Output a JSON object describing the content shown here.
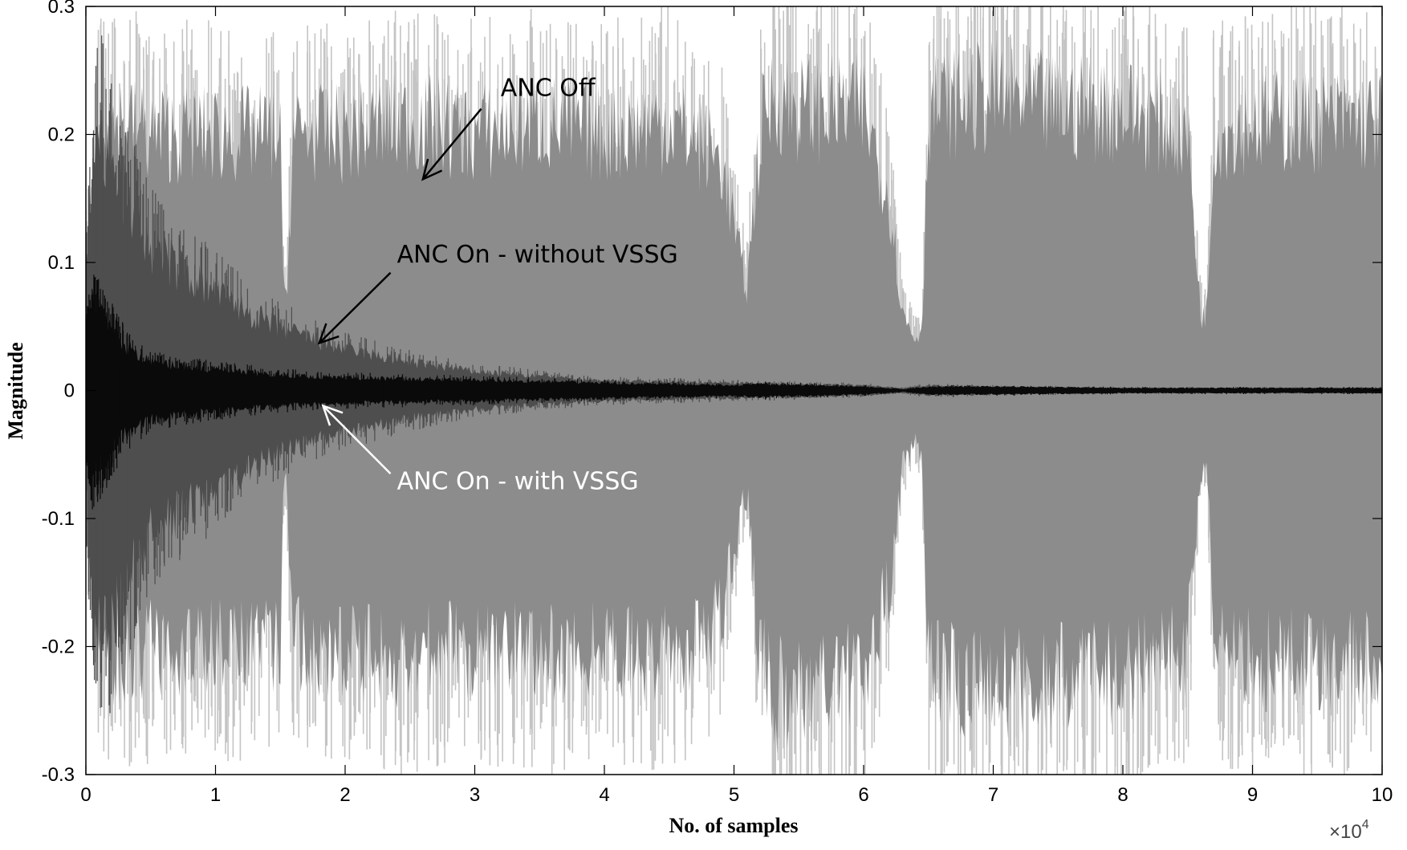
{
  "chart_data": {
    "type": "area",
    "xlabel": "No. of samples",
    "ylabel": "Magnitude",
    "x_multiplier": "×10",
    "x_multiplier_exp": "4",
    "xlim": [
      0,
      10
    ],
    "ylim": [
      -0.3,
      0.3
    ],
    "x_ticks": [
      "0",
      "1",
      "2",
      "3",
      "4",
      "5",
      "6",
      "7",
      "8",
      "9",
      "10"
    ],
    "y_ticks": [
      "0.3",
      "0.2",
      "0.1",
      "0",
      "-0.1",
      "-0.2",
      "-0.3"
    ],
    "grid": false,
    "series": [
      {
        "name": "ANC Off",
        "color": "#8c8c8c",
        "spike_color": "#c4c4c4",
        "envelope_x": [
          0,
          0.1,
          0.3,
          0.5,
          1.0,
          1.5,
          1.52,
          1.55,
          1.6,
          2.0,
          2.5,
          3.0,
          3.5,
          4.0,
          4.5,
          4.9,
          5.0,
          5.05,
          5.1,
          5.2,
          5.3,
          5.5,
          6.0,
          6.2,
          6.3,
          6.4,
          6.45,
          6.5,
          7.0,
          7.5,
          8.0,
          8.5,
          8.6,
          8.65,
          8.7,
          9.0,
          9.5,
          10.0
        ],
        "envelope_upper": [
          0.1,
          0.2,
          0.21,
          0.2,
          0.2,
          0.2,
          0.08,
          0.08,
          0.2,
          0.2,
          0.21,
          0.2,
          0.21,
          0.2,
          0.21,
          0.18,
          0.13,
          0.1,
          0.08,
          0.2,
          0.23,
          0.22,
          0.22,
          0.15,
          0.06,
          0.04,
          0.05,
          0.22,
          0.23,
          0.22,
          0.22,
          0.2,
          0.06,
          0.06,
          0.2,
          0.21,
          0.21,
          0.21
        ],
        "envelope_lower": [
          -0.1,
          -0.2,
          -0.21,
          -0.2,
          -0.2,
          -0.2,
          -0.08,
          -0.08,
          -0.2,
          -0.2,
          -0.21,
          -0.2,
          -0.21,
          -0.2,
          -0.21,
          -0.18,
          -0.13,
          -0.1,
          -0.08,
          -0.21,
          -0.24,
          -0.23,
          -0.22,
          -0.15,
          -0.06,
          -0.04,
          -0.05,
          -0.22,
          -0.23,
          -0.22,
          -0.22,
          -0.2,
          -0.06,
          -0.06,
          -0.2,
          -0.21,
          -0.21,
          -0.21
        ],
        "peak": 0.3
      },
      {
        "name": "ANC On - without VSSG",
        "color": "#4e4e4e",
        "envelope_x": [
          0,
          0.05,
          0.1,
          0.2,
          0.5,
          1.0,
          1.5,
          2.0,
          2.5,
          3.0,
          3.5,
          4.0,
          5.0,
          5.5,
          6.0,
          6.3,
          6.5,
          7.0,
          8.0,
          9.0,
          10.0
        ],
        "envelope_upper": [
          0.08,
          0.15,
          0.2,
          0.17,
          0.11,
          0.075,
          0.048,
          0.032,
          0.022,
          0.015,
          0.011,
          0.008,
          0.006,
          0.005,
          0.004,
          0.002,
          0.004,
          0.003,
          0.002,
          0.002,
          0.002
        ],
        "envelope_lower": [
          -0.08,
          -0.15,
          -0.2,
          -0.17,
          -0.11,
          -0.075,
          -0.048,
          -0.032,
          -0.022,
          -0.015,
          -0.011,
          -0.008,
          -0.006,
          -0.005,
          -0.004,
          -0.002,
          -0.004,
          -0.003,
          -0.002,
          -0.002,
          -0.002
        ]
      },
      {
        "name": "ANC On - with VSSG",
        "color": "#0a0a0a",
        "envelope_x": [
          0,
          0.05,
          0.1,
          0.3,
          0.5,
          1.0,
          1.5,
          2.0,
          3.0,
          4.0,
          5.0,
          5.2,
          6.0,
          6.3,
          6.5,
          7.0,
          8.0,
          9.0,
          10.0
        ],
        "envelope_upper": [
          0.04,
          0.065,
          0.06,
          0.035,
          0.022,
          0.016,
          0.012,
          0.01,
          0.008,
          0.006,
          0.004,
          0.005,
          0.003,
          0.001,
          0.003,
          0.003,
          0.002,
          0.002,
          0.002
        ],
        "envelope_lower": [
          -0.04,
          -0.065,
          -0.06,
          -0.035,
          -0.022,
          -0.016,
          -0.012,
          -0.01,
          -0.008,
          -0.006,
          -0.004,
          -0.005,
          -0.003,
          -0.001,
          -0.003,
          -0.003,
          -0.002,
          -0.002,
          -0.002
        ]
      }
    ],
    "annotations": [
      {
        "text": "ANC Off",
        "text_color": "#000000",
        "arrow_color": "#000000",
        "text_at": [
          3.2,
          0.23
        ],
        "arrow_from": [
          3.05,
          0.22
        ],
        "arrow_to": [
          2.6,
          0.165
        ]
      },
      {
        "text": "ANC On - without VSSG",
        "text_color": "#000000",
        "arrow_color": "#000000",
        "text_at": [
          2.4,
          0.1
        ],
        "arrow_from": [
          2.35,
          0.092
        ],
        "arrow_to": [
          1.8,
          0.037
        ]
      },
      {
        "text": "ANC On - with VSSG",
        "text_color": "#ffffff",
        "arrow_color": "#ffffff",
        "text_at": [
          2.4,
          -0.077
        ],
        "arrow_from": [
          2.35,
          -0.065
        ],
        "arrow_to": [
          1.83,
          -0.012
        ]
      }
    ]
  }
}
